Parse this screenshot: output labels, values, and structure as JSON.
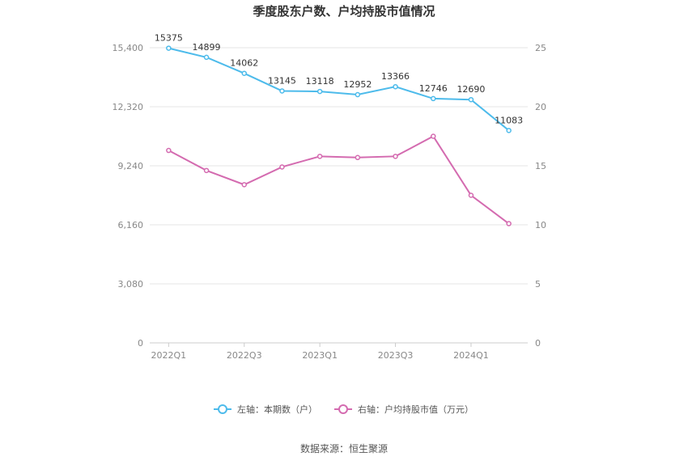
{
  "chart_data": {
    "type": "line",
    "title": "季度股东户数、户均持股市值情况",
    "categories": [
      "2022Q1",
      "2022Q2",
      "2022Q3",
      "2022Q4",
      "2023Q1",
      "2023Q2",
      "2023Q3",
      "2023Q4",
      "2024Q1",
      "2024Q2"
    ],
    "x_tick_labels": [
      "2022Q1",
      "2022Q3",
      "2023Q1",
      "2023Q3",
      "2024Q1"
    ],
    "left_axis": {
      "ylim": [
        0,
        15400
      ],
      "ticks": [
        "0",
        "3,080",
        "6,160",
        "9,240",
        "12,320",
        "15,400"
      ],
      "tick_values": [
        0,
        3080,
        6160,
        9240,
        12320,
        15400
      ]
    },
    "right_axis": {
      "ylim": [
        0,
        25
      ],
      "ticks": [
        "0",
        "5",
        "10",
        "15",
        "20",
        "25"
      ],
      "tick_values": [
        0,
        5,
        10,
        15,
        20,
        25
      ]
    },
    "series": [
      {
        "name": "左轴：本期数（户）",
        "axis": "left",
        "color": "#4dbbeb",
        "values": [
          15375,
          14899,
          14062,
          13145,
          13118,
          12952,
          13366,
          12746,
          12690,
          11083
        ],
        "labels": [
          "15375",
          "14899",
          "14062",
          "13145",
          "13118",
          "12952",
          "13366",
          "12746",
          "12690",
          "11083"
        ]
      },
      {
        "name": "右轴：户均持股市值（万元）",
        "axis": "right",
        "color": "#d46bb0",
        "values": [
          16.3,
          14.6,
          13.4,
          14.9,
          15.8,
          15.7,
          15.8,
          17.5,
          12.5,
          10.1
        ]
      }
    ],
    "grid": true,
    "legend_position": "bottom"
  },
  "source": "数据来源：恒生聚源"
}
